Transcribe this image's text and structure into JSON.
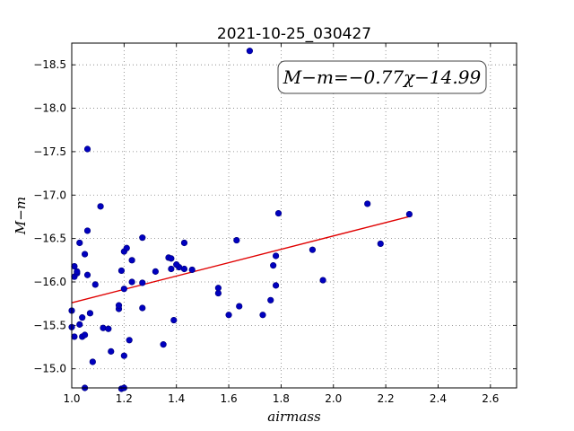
{
  "chart_data": {
    "type": "scatter",
    "title": "2021-10-25_030427",
    "xlabel": "airmass",
    "ylabel": "M−m",
    "xlim": [
      1.0,
      2.7
    ],
    "ylim": [
      -18.75,
      -14.78
    ],
    "y_inverted": true,
    "grid": true,
    "xticks": [
      1.0,
      1.2,
      1.4,
      1.6,
      1.8,
      2.0,
      2.2,
      2.4,
      2.6
    ],
    "xtick_labels": [
      "1.0",
      "1.2",
      "1.4",
      "1.6",
      "1.8",
      "2.0",
      "2.2",
      "2.4",
      "2.6"
    ],
    "yticks": [
      -15.0,
      -15.5,
      -16.0,
      -16.5,
      -17.0,
      -17.5,
      -18.0,
      -18.5
    ],
    "ytick_labels": [
      "−15.0",
      "−15.5",
      "−16.0",
      "−16.5",
      "−17.0",
      "−17.5",
      "−18.0",
      "−18.5"
    ],
    "fit": {
      "label": "M−m=−0.77χ−14.99",
      "slope": -0.77,
      "intercept": -14.99,
      "x_range": [
        1.0,
        2.3
      ],
      "color": "#e00000"
    },
    "point_color": "#0000bf",
    "points": [
      [
        1.05,
        -14.78
      ],
      [
        1.19,
        -14.77
      ],
      [
        1.2,
        -14.78
      ],
      [
        1.08,
        -15.08
      ],
      [
        1.2,
        -15.15
      ],
      [
        1.15,
        -15.2
      ],
      [
        1.35,
        -15.28
      ],
      [
        1.22,
        -15.33
      ],
      [
        1.01,
        -15.37
      ],
      [
        1.04,
        -15.37
      ],
      [
        1.05,
        -15.39
      ],
      [
        1.0,
        -15.48
      ],
      [
        1.03,
        -15.51
      ],
      [
        1.12,
        -15.47
      ],
      [
        1.14,
        -15.46
      ],
      [
        1.39,
        -15.56
      ],
      [
        1.04,
        -15.59
      ],
      [
        1.07,
        -15.64
      ],
      [
        1.6,
        -15.62
      ],
      [
        1.73,
        -15.62
      ],
      [
        1.0,
        -15.67
      ],
      [
        1.18,
        -15.69
      ],
      [
        1.27,
        -15.7
      ],
      [
        1.18,
        -15.73
      ],
      [
        1.64,
        -15.72
      ],
      [
        1.76,
        -15.79
      ],
      [
        1.56,
        -15.87
      ],
      [
        1.56,
        -15.93
      ],
      [
        1.2,
        -15.92
      ],
      [
        1.09,
        -15.97
      ],
      [
        1.27,
        -15.99
      ],
      [
        1.23,
        -16.0
      ],
      [
        1.78,
        -15.96
      ],
      [
        1.96,
        -16.02
      ],
      [
        1.01,
        -16.06
      ],
      [
        1.02,
        -16.1
      ],
      [
        1.02,
        -16.12
      ],
      [
        1.06,
        -16.08
      ],
      [
        1.32,
        -16.12
      ],
      [
        1.19,
        -16.13
      ],
      [
        1.01,
        -16.18
      ],
      [
        1.38,
        -16.15
      ],
      [
        1.41,
        -16.17
      ],
      [
        1.43,
        -16.15
      ],
      [
        1.4,
        -16.2
      ],
      [
        1.46,
        -16.14
      ],
      [
        1.77,
        -16.19
      ],
      [
        1.23,
        -16.25
      ],
      [
        1.37,
        -16.28
      ],
      [
        1.38,
        -16.27
      ],
      [
        1.05,
        -16.32
      ],
      [
        1.78,
        -16.3
      ],
      [
        1.2,
        -16.35
      ],
      [
        1.21,
        -16.39
      ],
      [
        1.92,
        -16.37
      ],
      [
        1.03,
        -16.45
      ],
      [
        1.43,
        -16.45
      ],
      [
        1.27,
        -16.51
      ],
      [
        1.63,
        -16.48
      ],
      [
        2.18,
        -16.44
      ],
      [
        1.06,
        -16.59
      ],
      [
        2.29,
        -16.78
      ],
      [
        1.79,
        -16.79
      ],
      [
        1.11,
        -16.87
      ],
      [
        2.13,
        -16.9
      ],
      [
        1.06,
        -17.53
      ],
      [
        1.68,
        -18.66
      ]
    ]
  }
}
